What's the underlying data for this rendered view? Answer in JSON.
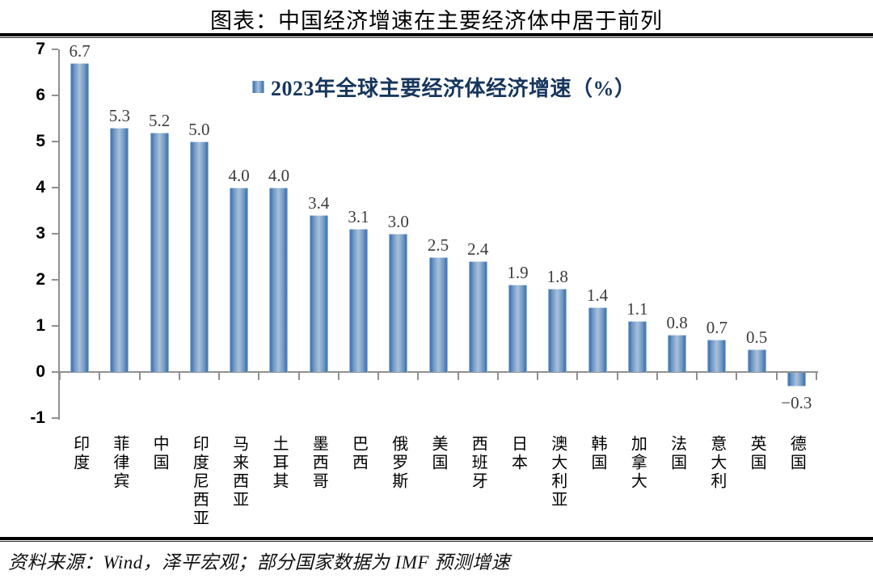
{
  "title": "图表：中国经济增速在主要经济体中居于前列",
  "source": "资料来源：Wind，泽平宏观；部分国家数据为 IMF 预测增速",
  "chart_data": {
    "type": "bar",
    "title": "图表：中国经济增速在主要经济体中居于前列",
    "legend": "2023年全球主要经济体经济增速（%）",
    "legend_position": "top-center",
    "categories": [
      "印度",
      "菲律宾",
      "中国",
      "印度尼西亚",
      "马来西亚",
      "土耳其",
      "墨西哥",
      "巴西",
      "俄罗斯",
      "美国",
      "西班牙",
      "日本",
      "澳大利亚",
      "韩国",
      "加拿大",
      "法国",
      "意大利",
      "英国",
      "德国"
    ],
    "values": [
      6.7,
      5.3,
      5.2,
      5.0,
      4.0,
      4.0,
      3.4,
      3.1,
      3.0,
      2.5,
      2.4,
      1.9,
      1.8,
      1.4,
      1.1,
      0.8,
      0.7,
      0.5,
      -0.3
    ],
    "xlabel": "",
    "ylabel": "",
    "ylim": [
      -1,
      7
    ],
    "yticks": [
      -1,
      0,
      1,
      2,
      3,
      4,
      5,
      6,
      7
    ],
    "grid": false,
    "colors": {
      "bar_dark": "#3d72ad",
      "bar_mid": "#6d96c4",
      "bar_light": "#a9c1db",
      "bar_edge_highlight": "#bdd1e6",
      "legend_text": "#17365d",
      "axis": "#909090",
      "value_label": "#3c3c3c"
    }
  }
}
